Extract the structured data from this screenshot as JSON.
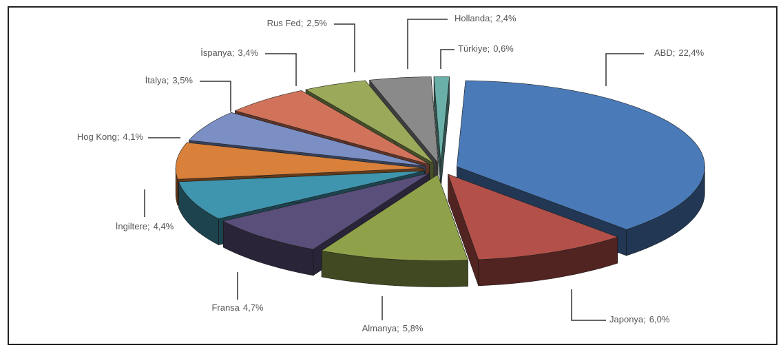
{
  "chart_data": {
    "type": "pie",
    "categories": [
      "ABD;",
      "Japonya;",
      "Almanya;",
      "Fransa",
      "İngiltere;",
      "Hog Kong;",
      "İtalya;",
      "İspanya;",
      "Rus Fed;",
      "Hollanda;",
      "Türkiye;"
    ],
    "values": [
      22.4,
      6.0,
      5.8,
      4.7,
      4.4,
      4.1,
      3.5,
      3.4,
      2.5,
      2.4,
      0.6
    ],
    "value_labels": [
      "22,4%",
      "6,0%",
      "5,8%",
      "4,7%",
      "4,4%",
      "4,1%",
      "3,5%",
      "3,4%",
      "2,5%",
      "2,4%",
      "0,6%"
    ],
    "colors": [
      "#4a7ab8",
      "#b4504a",
      "#8fa24a",
      "#5a4f7a",
      "#3f95ad",
      "#d9803a",
      "#7b8fc4",
      "#d0735a",
      "#9aaa5a",
      "#8a8a8a",
      "#6ab0a8"
    ]
  }
}
